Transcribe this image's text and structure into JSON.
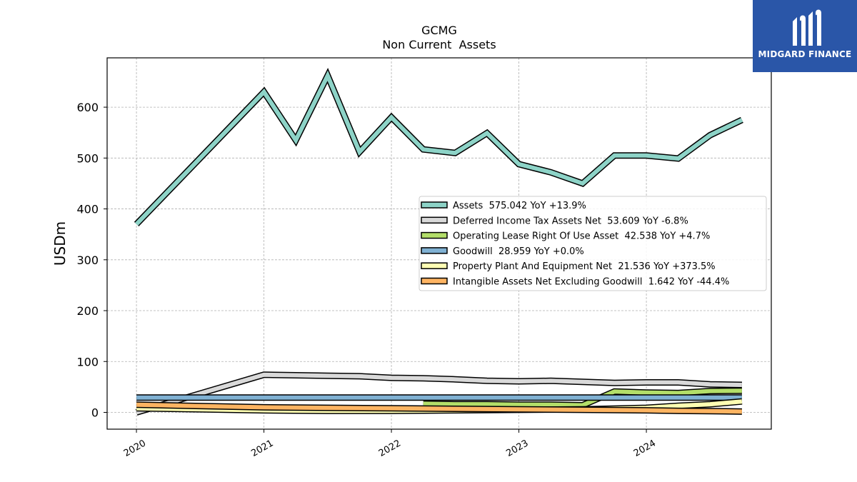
{
  "chart_data": {
    "type": "line",
    "title": "GCMG",
    "subtitle": "Non Current  Assets",
    "ylabel": "USDm",
    "xlabel": "",
    "ylim": [
      -33,
      697
    ],
    "xlim": [
      2019.77,
      2024.98
    ],
    "yticks": [
      0,
      100,
      200,
      300,
      400,
      500,
      600
    ],
    "xticks": [
      2020,
      2021,
      2022,
      2023,
      2024
    ],
    "grid": true,
    "legend_position": "center-right",
    "series": [
      {
        "name": "Assets",
        "legend": "Assets  575.042 YoY +13.9%",
        "color": "#8dd3c7",
        "x": [
          2020.0,
          2021.0,
          2021.25,
          2021.5,
          2021.75,
          2022.0,
          2022.25,
          2022.5,
          2022.75,
          2023.0,
          2023.25,
          2023.5,
          2023.75,
          2024.0,
          2024.25,
          2024.5,
          2024.75
        ],
        "values": [
          370,
          630,
          535,
          662,
          512,
          580,
          517,
          510,
          549,
          488,
          472,
          450,
          505,
          505,
          499,
          545,
          575
        ]
      },
      {
        "name": "Deferred Income Tax Assets Net",
        "legend": "Deferred Income Tax Assets Net  53.609 YoY -6.8%",
        "color": "#d9d9d9",
        "x": [
          2020.0,
          2021.0,
          2021.25,
          2021.5,
          2021.75,
          2022.0,
          2022.25,
          2022.5,
          2022.75,
          2023.0,
          2023.25,
          2023.5,
          2023.75,
          2024.0,
          2024.25,
          2024.5,
          2024.75
        ],
        "values": [
          0,
          74,
          73,
          72,
          71,
          68,
          67,
          65,
          62,
          61,
          62,
          60,
          58,
          59,
          59,
          55,
          54
        ]
      },
      {
        "name": "Operating Lease Right Of Use Asset",
        "legend": "Operating Lease Right Of Use Asset  42.538 YoY +4.7%",
        "color": "#b3de69",
        "x": [
          2022.25,
          2022.5,
          2022.75,
          2023.0,
          2023.25,
          2023.5,
          2023.75,
          2024.0,
          2024.25,
          2024.5,
          2024.75
        ],
        "values": [
          17,
          16,
          16,
          15,
          15,
          14,
          41,
          39,
          38,
          42,
          42.5
        ]
      },
      {
        "name": "Goodwill",
        "legend": "Goodwill  28.959 YoY +0.0%",
        "color": "#80b1d3",
        "x": [
          2020.0,
          2024.75
        ],
        "values": [
          29,
          29
        ]
      },
      {
        "name": "Property Plant And Equipment Net",
        "legend": "Property Plant And Equipment Net  21.536 YoY +373.5%",
        "color": "#ffffb3",
        "x": [
          2020.0,
          2021.0,
          2021.5,
          2022.0,
          2022.5,
          2023.0,
          2023.5,
          2024.0,
          2024.25,
          2024.5,
          2024.75
        ],
        "values": [
          8,
          4,
          3,
          3,
          4,
          5,
          6,
          9,
          13,
          16,
          21.5
        ]
      },
      {
        "name": "Intangible Assets Net Excluding Goodwill",
        "legend": "Intangible Assets Net Excluding Goodwill  1.642 YoY -44.4%",
        "color": "#fdb462",
        "x": [
          2020.0,
          2021.0,
          2021.5,
          2022.0,
          2022.5,
          2023.0,
          2023.5,
          2024.0,
          2024.25,
          2024.5,
          2024.75
        ],
        "values": [
          15,
          10,
          9,
          8,
          7,
          6,
          5,
          4,
          3,
          2.5,
          1.6
        ]
      }
    ]
  },
  "logo": {
    "text": "MIDGARD FINANCE",
    "background": "#2a56a8"
  }
}
